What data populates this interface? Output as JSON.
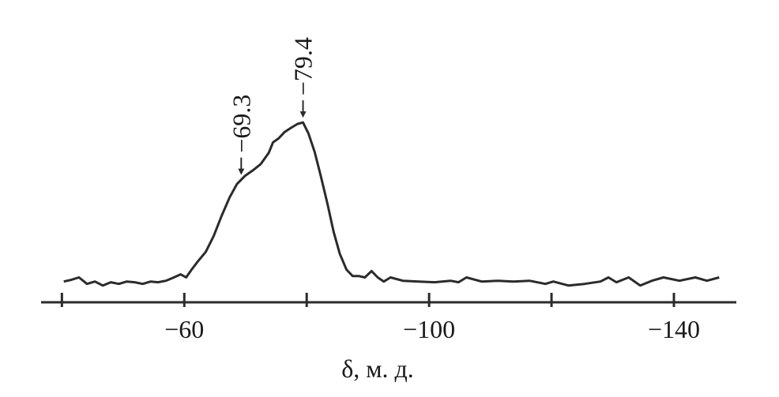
{
  "chart_data": {
    "type": "line",
    "x_label": "δ, м. д.",
    "xlim": [
      -36.6,
      -150.2
    ],
    "ylim": [
      0,
      100
    ],
    "xticks": [
      {
        "value": -60,
        "label": "−60"
      },
      {
        "value": -100,
        "label": "−100"
      },
      {
        "value": -140,
        "label": "−140"
      }
    ],
    "minor_xticks": [
      -40,
      -80,
      -120
    ],
    "color": "#2b2b2b",
    "x": [
      -40.3,
      -41.5,
      -42.8,
      -44.1,
      -45.4,
      -46.7,
      -48.0,
      -49.3,
      -50.6,
      -51.9,
      -53.2,
      -54.5,
      -55.7,
      -57.0,
      -58.3,
      -59.4,
      -60.3,
      -61.2,
      -62.2,
      -63.5,
      -64.8,
      -66.1,
      -67.4,
      -68.6,
      -69.9,
      -71.2,
      -72.5,
      -73.8,
      -74.5,
      -75.4,
      -76.4,
      -77.4,
      -78.5,
      -79.4,
      -80.3,
      -81.3,
      -82.3,
      -83.4,
      -84.4,
      -85.4,
      -86.5,
      -87.5,
      -88.5,
      -89.5,
      -90.6,
      -91.6,
      -92.6,
      -93.7,
      -95.7,
      -98.3,
      -100.9,
      -103.5,
      -104.8,
      -106.1,
      -108.6,
      -111.2,
      -113.8,
      -116.4,
      -119.0,
      -120.3,
      -122.8,
      -125.4,
      -128.0,
      -129.3,
      -130.6,
      -132.6,
      -134.5,
      -136.4,
      -138.3,
      -140.9,
      -143.5,
      -145.4,
      -147.4
    ],
    "values": [
      11.3,
      12.2,
      13.5,
      10.0,
      11.3,
      9.1,
      10.9,
      10.0,
      11.3,
      10.9,
      10.0,
      11.3,
      10.9,
      11.7,
      13.5,
      15.2,
      13.5,
      17.8,
      22.2,
      27.4,
      36.1,
      47.0,
      57.0,
      64.3,
      68.7,
      71.7,
      75.2,
      81.3,
      87.0,
      89.1,
      92.6,
      94.8,
      97.0,
      97.8,
      91.7,
      81.7,
      68.7,
      53.5,
      38.3,
      26.5,
      17.8,
      14.3,
      14.3,
      13.5,
      17.0,
      13.5,
      11.3,
      13.5,
      11.7,
      11.3,
      10.9,
      11.7,
      10.9,
      13.5,
      11.3,
      11.7,
      11.3,
      11.7,
      10.0,
      11.3,
      9.1,
      10.0,
      11.3,
      13.5,
      10.9,
      13.5,
      9.1,
      11.7,
      13.5,
      11.7,
      13.5,
      11.7,
      13.5
    ],
    "annotations": [
      {
        "x": -69.3,
        "label": "−69.3"
      },
      {
        "x": -79.4,
        "label": "−79.4"
      }
    ]
  }
}
